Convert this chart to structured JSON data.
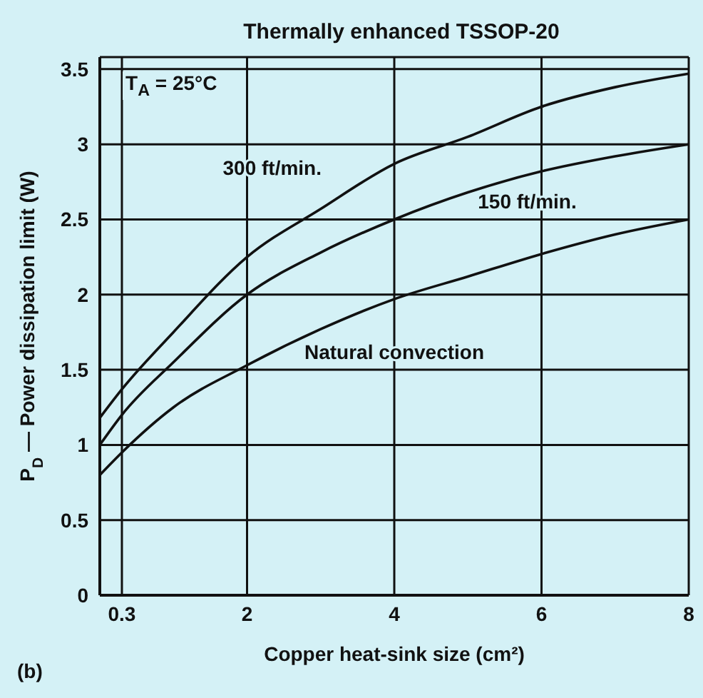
{
  "chart_data": {
    "type": "line",
    "title": "Thermally enhanced TSSOP-20",
    "xlabel": "Copper heat-sink size  (cm²)",
    "ylabel": "P$_{D}$ — Power dissipation limit (W)",
    "annotations": [
      "T$_{A}$ = 25°C",
      "(b)"
    ],
    "x": [
      0,
      0.3,
      1,
      2,
      3,
      4,
      5,
      6,
      7,
      8
    ],
    "series": [
      {
        "name": "300 ft/min.",
        "color": "#111111",
        "values": [
          1.18,
          1.37,
          1.75,
          2.25,
          2.57,
          2.87,
          3.05,
          3.25,
          3.38,
          3.47
        ]
      },
      {
        "name": "150 ft/min.",
        "color": "#111111",
        "values": [
          1.0,
          1.2,
          1.55,
          2.0,
          2.28,
          2.5,
          2.68,
          2.82,
          2.92,
          3.0
        ]
      },
      {
        "name": "Natural convection",
        "color": "#111111",
        "values": [
          0.8,
          0.95,
          1.25,
          1.53,
          1.77,
          1.97,
          2.12,
          2.27,
          2.4,
          2.5
        ]
      }
    ],
    "xlim": [
      0,
      8
    ],
    "xticks": [
      0.3,
      2,
      4,
      6,
      8
    ],
    "ylim": [
      0,
      3.58
    ],
    "yticks": [
      0,
      0.5,
      1,
      1.5,
      2,
      2.5,
      3,
      3.5
    ],
    "grid": true,
    "legend": false,
    "marker": "none",
    "line_style": "solid"
  }
}
